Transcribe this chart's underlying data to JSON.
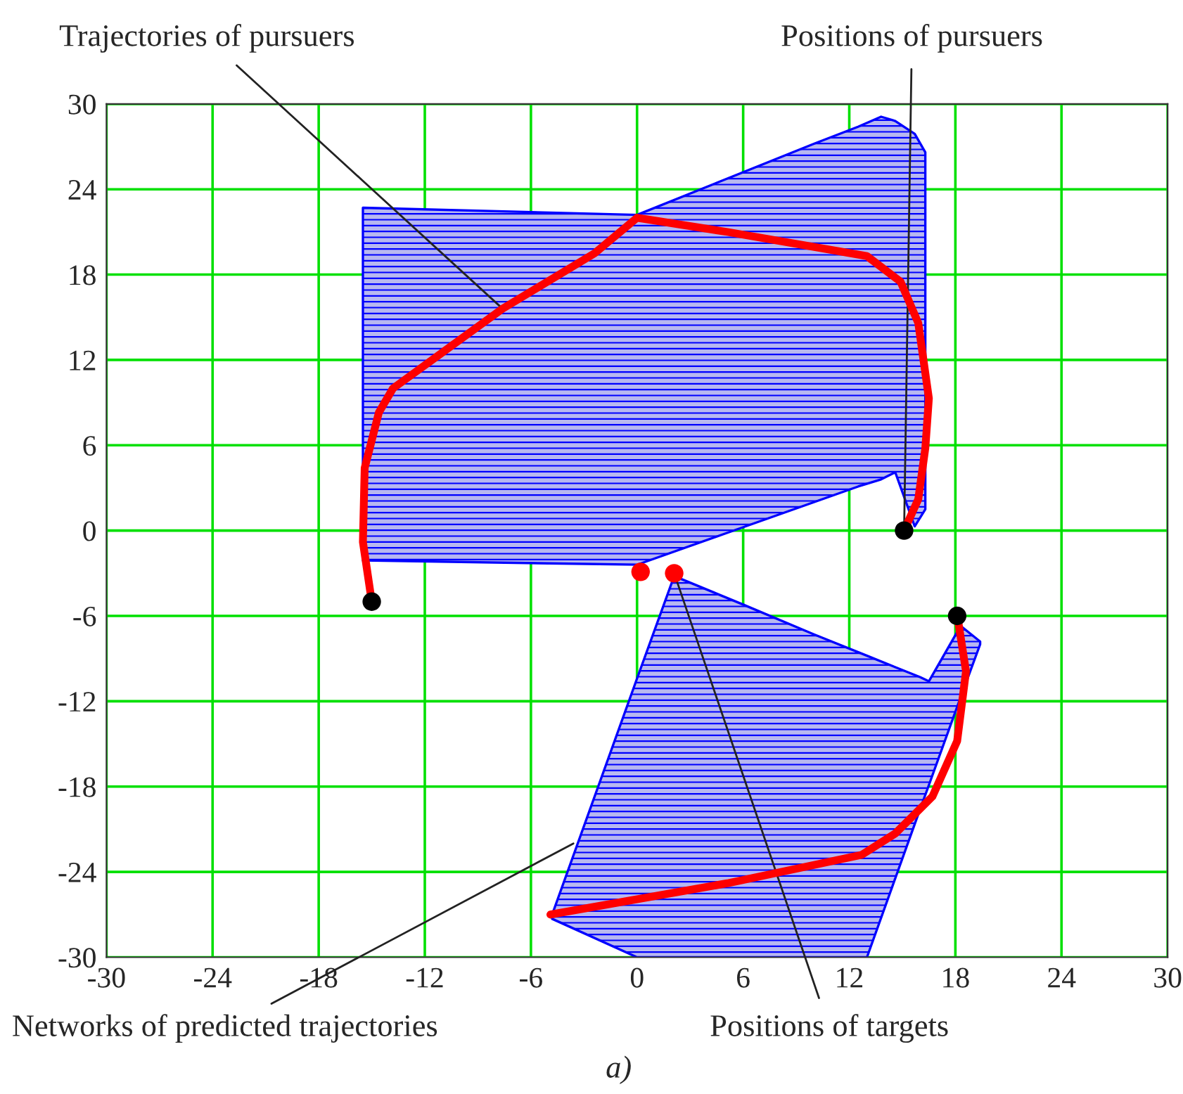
{
  "chart_data": {
    "type": "line",
    "xlim": [
      -30,
      30
    ],
    "ylim": [
      -30,
      30
    ],
    "xticks": [
      -30,
      -24,
      -18,
      -12,
      -6,
      0,
      6,
      12,
      18,
      24,
      30
    ],
    "yticks": [
      -30,
      -24,
      -18,
      -12,
      -6,
      0,
      6,
      12,
      18,
      24,
      30
    ],
    "grid": true,
    "series": [
      {
        "type": "area",
        "color": "#0000ff",
        "x": [
          -15.5,
          0,
          5,
          10,
          12.5,
          13.8,
          14.6,
          15.7,
          16.3
        ],
        "values": [
          null,
          null,
          null,
          null,
          null,
          null,
          null,
          null,
          null
        ],
        "lower": [
          -2.1,
          -2.4,
          -0.2,
          2.0,
          3.1,
          3.6,
          4.1,
          0.3,
          1.5
        ],
        "upper": [
          22.7,
          22.2,
          24.7,
          27.2,
          28.4,
          29.1,
          28.8,
          27.9,
          26.6
        ]
      },
      {
        "type": "area",
        "color": "#0000ff",
        "x": [
          -4.8,
          0,
          2.1,
          6,
          10,
          13,
          16,
          16.5,
          18.3,
          19.4
        ],
        "values": [
          null,
          null,
          null,
          null,
          null,
          null,
          null,
          null,
          null,
          null
        ],
        "lower": [
          -27.3,
          -30,
          -30,
          -30,
          -30,
          -30,
          -19.6,
          -17.9,
          -11.7,
          -8.0
        ],
        "upper": [
          -27.0,
          -10.4,
          -3.2,
          -5.2,
          -7.3,
          -8.8,
          -10.3,
          -10.6,
          -6.7,
          -7.8
        ]
      },
      {
        "color": "#ff0000",
        "x": [
          -15.0,
          -15.5,
          -15.4,
          -14.6,
          -13.8,
          -7.6,
          -2.4,
          0,
          5.1,
          13.0,
          14.9,
          15.9,
          16.5,
          16.3,
          15.9,
          15.1
        ],
        "values": [
          -5.0,
          -0.8,
          4.4,
          8.3,
          10.0,
          15.6,
          19.5,
          22.0,
          21.0,
          19.3,
          17.5,
          14.6,
          9.3,
          5.8,
          2.2,
          0
        ]
      },
      {
        "color": "#ff0000",
        "x": [
          18.1,
          18.2,
          18.6,
          18.1,
          16.7,
          14.6,
          12.7,
          5.1,
          -4.9
        ],
        "values": [
          -6.0,
          -6.7,
          -9.9,
          -14.8,
          -18.7,
          -21.3,
          -22.8,
          -24.8,
          -27.0
        ]
      },
      {
        "type": "scatter",
        "color": "#000000",
        "x": [
          -15.0,
          15.1,
          18.1
        ],
        "values": [
          -5.0,
          0,
          -6.0
        ]
      },
      {
        "type": "scatter",
        "color": "#ff0000",
        "x": [
          0.2,
          2.1
        ],
        "values": [
          -2.9,
          -3.0
        ]
      }
    ],
    "annotations": [
      {
        "text": "Trajectories of pursuers",
        "x": -7.6,
        "y": 15.6
      },
      {
        "text": "Positions of pursuers",
        "x": 15.1,
        "y": 0
      },
      {
        "text": "Networks of predicted trajectories",
        "x": -3.6,
        "y": -22
      },
      {
        "text": "Positions of targets",
        "x": 2.1,
        "y": -3.0
      },
      "a)"
    ]
  }
}
